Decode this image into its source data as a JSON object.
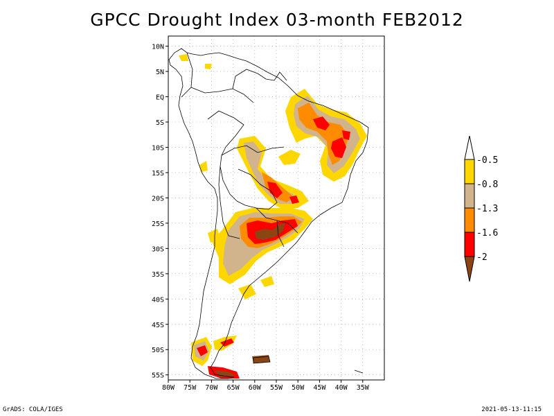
{
  "title": "GPCC Drought Index 03-month FEB2012",
  "colors": {
    "background": "#ffffff",
    "land_outline": "#000000",
    "grid": "#999999",
    "class_gt_minus0_5": "#ffffff",
    "class_minus0_5": "#ffd700",
    "class_minus0_8": "#d2b48c",
    "class_minus1_3": "#ff8c00",
    "class_minus1_6": "#ff0000",
    "class_minus2": "#8b4513"
  },
  "map": {
    "lon_range": [
      -80,
      -30
    ],
    "lat_range": [
      -56,
      12
    ],
    "lat_labels": [
      "10N",
      "5N",
      "EQ",
      "5S",
      "10S",
      "15S",
      "20S",
      "25S",
      "30S",
      "35S",
      "40S",
      "45S",
      "50S",
      "55S"
    ],
    "lon_labels": [
      "80W",
      "75W",
      "70W",
      "65W",
      "60W",
      "55W",
      "50W",
      "45W",
      "40W",
      "35W"
    ]
  },
  "legend": {
    "labels": [
      "-0.5",
      "-0.8",
      "-1.3",
      "-1.6",
      "-2"
    ]
  },
  "footer": {
    "left": "GrADS: COLA/IGES",
    "right": "2021-05-13-11:15"
  }
}
